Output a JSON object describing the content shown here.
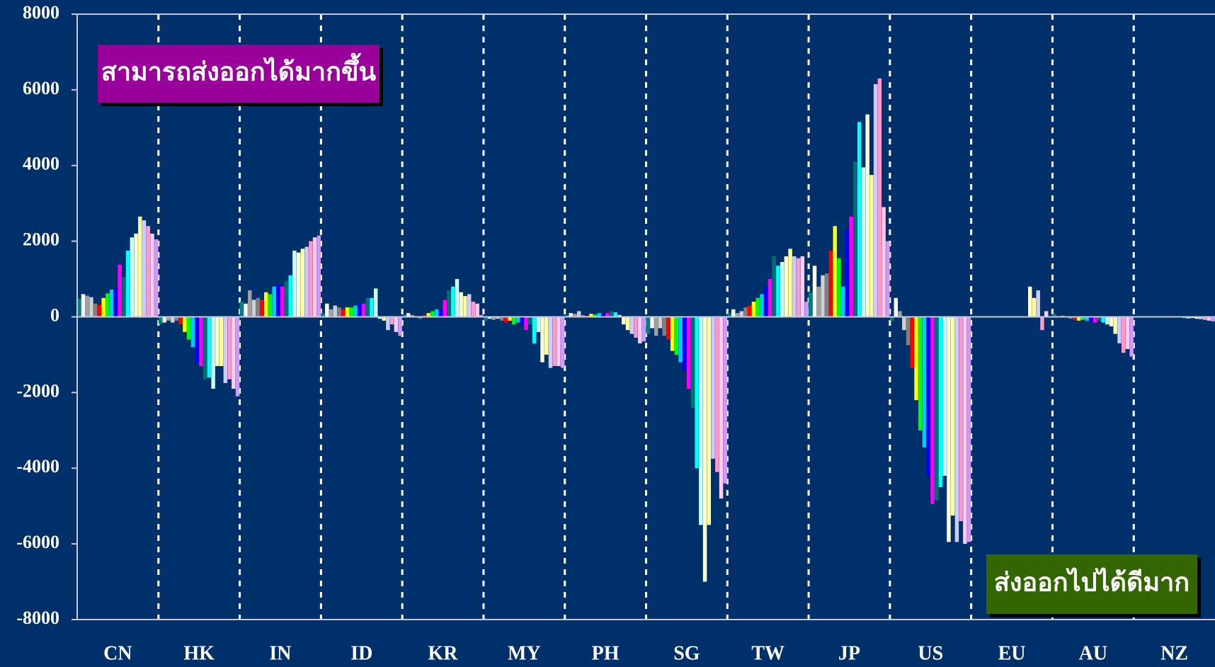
{
  "chart_data": {
    "type": "bar",
    "categories": [
      "CN",
      "HK",
      "IN",
      "ID",
      "KR",
      "MY",
      "PH",
      "SG",
      "TW",
      "JP",
      "US",
      "EU",
      "AU",
      "NZ"
    ],
    "values": [
      [
        480,
        600,
        560,
        520,
        350,
        320,
        500,
        620,
        720,
        760,
        1380,
        1050,
        1750,
        2100,
        2200,
        2650,
        2550,
        2400,
        2200,
        2050
      ],
      [
        -180,
        -150,
        -100,
        -150,
        -100,
        -200,
        -400,
        -600,
        -800,
        -1200,
        -1300,
        -1650,
        -1600,
        -1900,
        -1300,
        -1300,
        -1750,
        -1650,
        -1900,
        -2100
      ],
      [
        400,
        350,
        700,
        450,
        500,
        450,
        650,
        600,
        800,
        850,
        800,
        950,
        1100,
        1750,
        1700,
        1800,
        1850,
        2000,
        2100,
        2150
      ],
      [
        100,
        350,
        200,
        300,
        250,
        200,
        250,
        250,
        300,
        350,
        350,
        500,
        500,
        750,
        -50,
        -100,
        -350,
        -200,
        -400,
        -500
      ],
      [
        50,
        100,
        50,
        20,
        -50,
        50,
        100,
        150,
        200,
        200,
        450,
        700,
        800,
        1000,
        650,
        550,
        600,
        400,
        350,
        50
      ],
      [
        -100,
        -50,
        -80,
        -50,
        -100,
        -150,
        -100,
        -200,
        -150,
        -200,
        -350,
        -200,
        -700,
        -400,
        -1200,
        -1000,
        -1350,
        -1300,
        -1300,
        -1350
      ],
      [
        50,
        100,
        80,
        150,
        50,
        30,
        80,
        60,
        100,
        80,
        100,
        150,
        120,
        50,
        -200,
        -350,
        -450,
        -550,
        -700,
        -650
      ],
      [
        -450,
        -300,
        -500,
        -300,
        -500,
        -600,
        -900,
        -1000,
        -1200,
        -1400,
        -1900,
        -2400,
        -4000,
        -5500,
        -7000,
        -5500,
        -3750,
        -4100,
        -4800,
        -4400
      ],
      [
        100,
        200,
        100,
        150,
        250,
        300,
        400,
        500,
        600,
        800,
        1000,
        1600,
        1350,
        1450,
        1600,
        1800,
        1600,
        1550,
        1600,
        400
      ],
      [
        650,
        1350,
        800,
        1100,
        1150,
        1750,
        2400,
        1550,
        800,
        2300,
        2650,
        4100,
        5150,
        3950,
        5350,
        3750,
        6150,
        6300,
        2900,
        2000
      ],
      [
        -100,
        500,
        150,
        -350,
        -750,
        -1350,
        -2200,
        -3000,
        -3450,
        -4200,
        -4950,
        -4850,
        -4500,
        -4200,
        -5950,
        -5250,
        -5950,
        -5400,
        -6000,
        -5950
      ],
      [
        0,
        0,
        0,
        0,
        0,
        0,
        0,
        0,
        0,
        0,
        0,
        0,
        0,
        0,
        800,
        500,
        700,
        -350,
        150,
        0
      ],
      [
        80,
        0,
        30,
        0,
        -50,
        -80,
        -100,
        -80,
        -100,
        -120,
        -150,
        -100,
        -150,
        -200,
        -250,
        -450,
        -700,
        -950,
        -850,
        -1050
      ],
      [
        0,
        0,
        0,
        0,
        0,
        0,
        0,
        0,
        0,
        0,
        0,
        -20,
        -30,
        -40,
        -30,
        -50,
        -60,
        -80,
        -100,
        -120
      ]
    ],
    "colors": [
      "#008080",
      "#ffffff",
      "#a0a0a0",
      "#d0d0d0",
      "#808080",
      "#ff0000",
      "#ffff00",
      "#00ff00",
      "#00ccff",
      "#0000ff",
      "#ff00ff",
      "#006f6f",
      "#00ffff",
      "#ccffff",
      "#ffffcc",
      "#ffff99",
      "#ccccff",
      "#ff99cc",
      "#ffccee",
      "#cc99ff"
    ],
    "ylim": [
      -8000,
      8000
    ],
    "yticks": [
      -8000,
      -6000,
      -4000,
      -2000,
      0,
      2000,
      4000,
      6000,
      8000
    ],
    "annotations": [
      "สามารถส่งออกได้มากขึ้น",
      "ส่งออกไปได้ดีมาก"
    ]
  }
}
